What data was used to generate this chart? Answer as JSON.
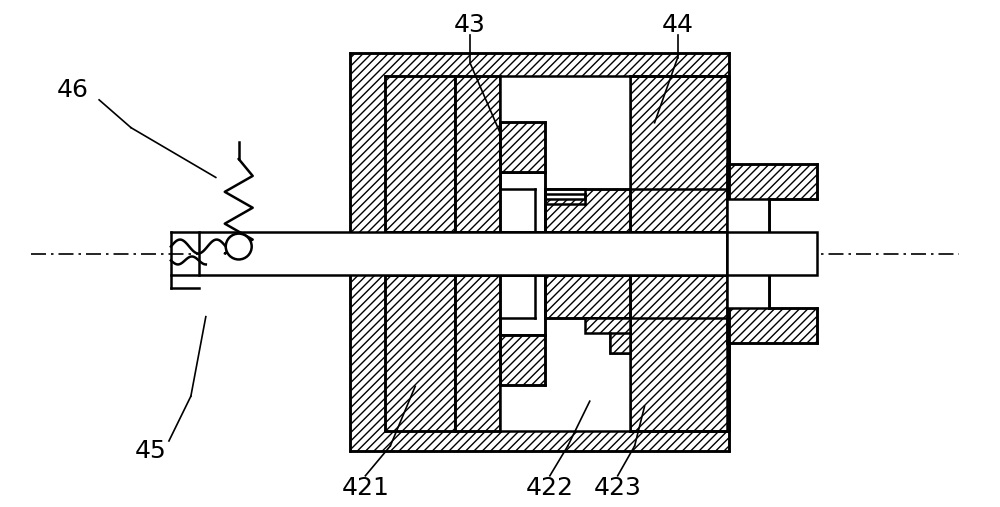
{
  "bg_color": "#ffffff",
  "lw": 1.8,
  "label_fontsize": 18,
  "fig_width": 10.0,
  "fig_height": 5.07,
  "dpi": 100
}
